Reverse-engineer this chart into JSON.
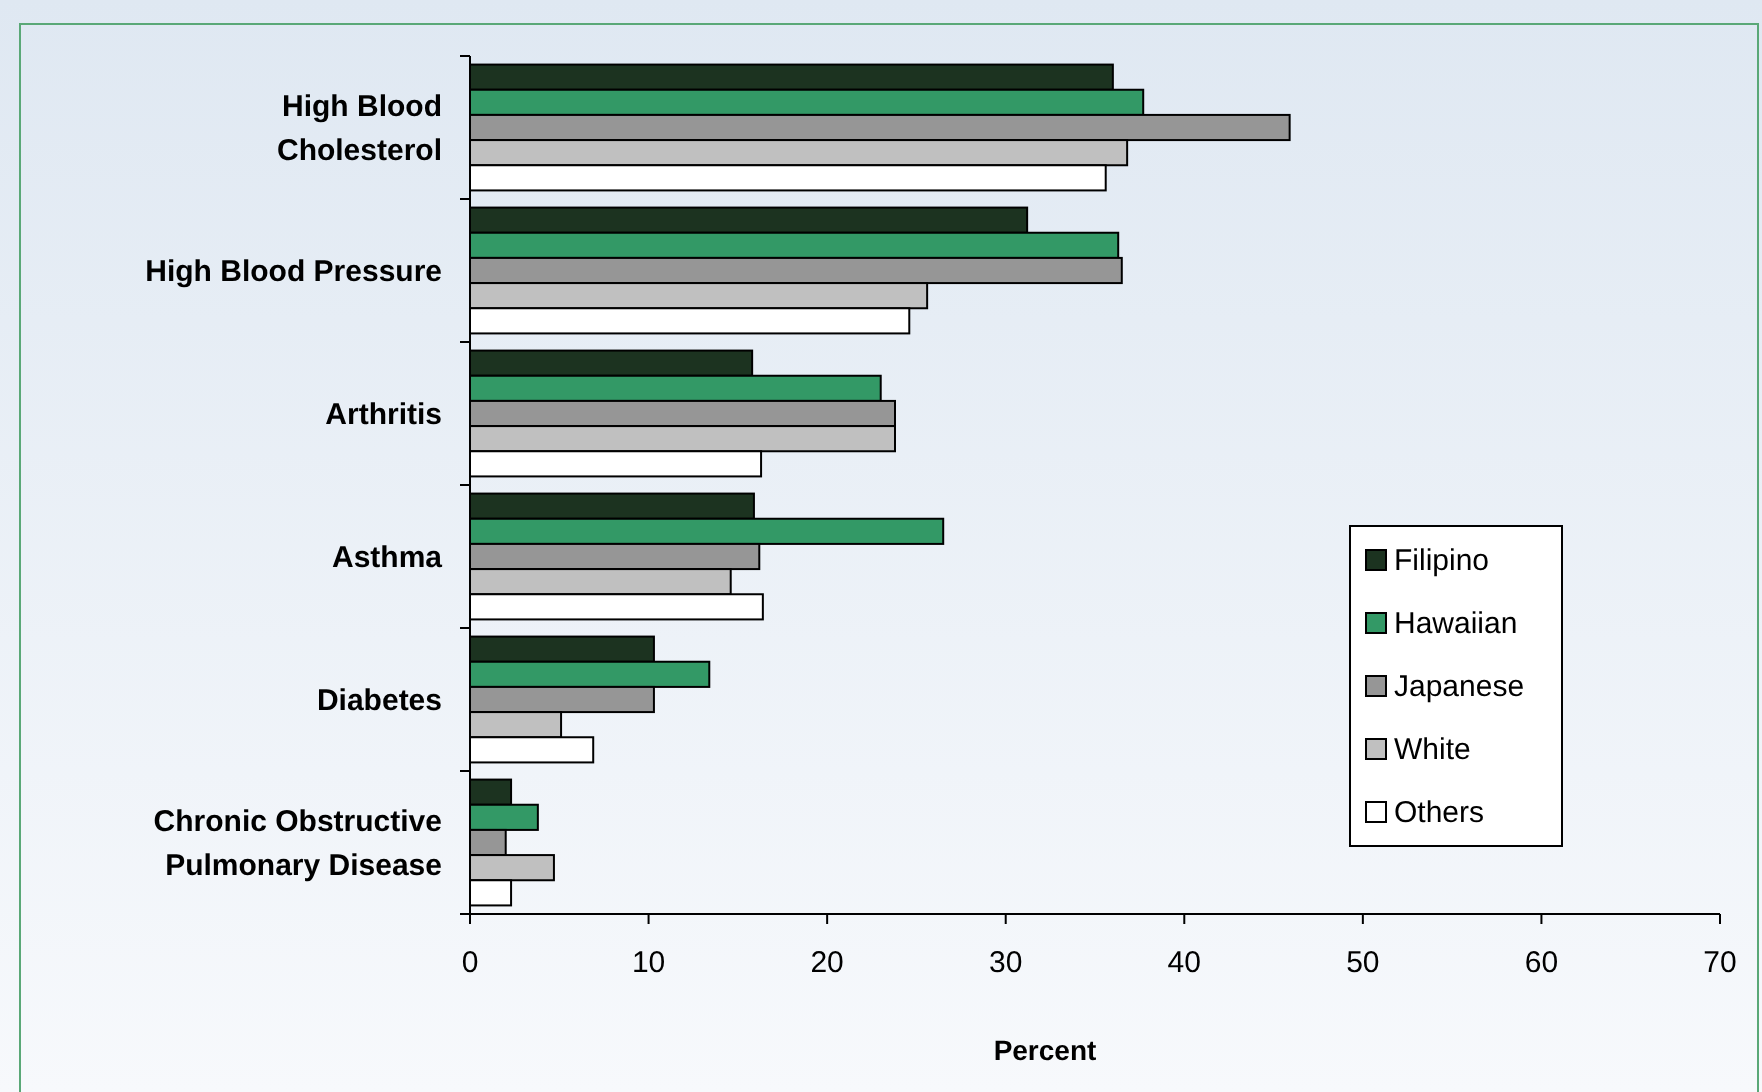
{
  "chart_data": {
    "type": "bar",
    "orientation": "horizontal",
    "xlabel": "Percent",
    "categories": [
      "High Blood Cholesterol",
      "High Blood Pressure",
      "Arthritis",
      "Asthma",
      "Diabetes",
      "Chronic Obstructive Pulmonary Disease"
    ],
    "series": [
      {
        "name": "Filipino",
        "color": "#1c3320",
        "values": [
          36,
          31.2,
          15.8,
          15.9,
          10.3,
          2.3
        ]
      },
      {
        "name": "Hawaiian",
        "color": "#339966",
        "values": [
          37.7,
          36.3,
          23,
          26.5,
          13.4,
          3.8
        ]
      },
      {
        "name": "Japanese",
        "color": "#969696",
        "values": [
          45.9,
          36.5,
          23.8,
          16.2,
          10.3,
          2
        ]
      },
      {
        "name": "White",
        "color": "#c0c0c0",
        "values": [
          36.8,
          25.6,
          23.8,
          14.6,
          5.1,
          4.7
        ]
      },
      {
        "name": "Others",
        "color": "#ffffff",
        "values": [
          35.6,
          24.6,
          16.3,
          16.4,
          6.9,
          2.3
        ]
      }
    ],
    "xlim": [
      0,
      70
    ],
    "xticks": [
      0,
      10,
      20,
      30,
      40,
      50,
      60,
      70
    ],
    "grid": false,
    "legend": "right"
  }
}
